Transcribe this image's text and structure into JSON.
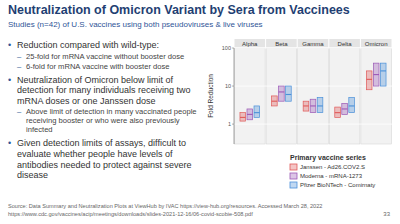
{
  "slide": {
    "title": "Neutralization of Omicron Variant by Sera from Vaccinees",
    "subtitle": "Studies (n=42) of U.S. vaccines using both pseudoviruses & live viruses",
    "bullets": [
      {
        "text": "Reduction compared with wild-type:",
        "sub": [
          "25-fold for mRNA vaccine without booster dose",
          "6-fold for mRNA vaccine with booster dose"
        ]
      },
      {
        "text": "Neutralization of Omicron below limit of detection for many individuals receiving two mRNA doses or one Janssen dose",
        "sub": [
          "Above limit of detection in many vaccinated people receiving booster or who were also previously infected"
        ]
      },
      {
        "text": "Given detection limits of assays, difficult to evaluate whether people have levels of antibodies needed to protect against severe disease",
        "sub": []
      }
    ],
    "source": [
      "Source: Data Summary and Neutralization Plots at ViewHub by IVAC https://view-hub.org/resources. Accessed March 28, 2022",
      "https://www.cdc.gov/vaccines/acip/meetings/downloads/slides-2021-12-16/06-covid-scobie-508.pdf"
    ],
    "page": 33
  },
  "chart_data": {
    "type": "box",
    "ylabel": "Fold Reduction",
    "categories": [
      "Alpha",
      "Beta",
      "Gamma",
      "Delta",
      "Omicron"
    ],
    "log": "y",
    "ylim": [
      0.3,
      100
    ],
    "yticks": [
      1,
      10,
      100
    ],
    "grid": true,
    "legend": "bottom right",
    "legend_title": "Primary vaccine series",
    "series": [
      {
        "name": "Janssen - Ad26.COV2.S",
        "color": "#e05a5a",
        "values": [
          1.5,
          4,
          3,
          2,
          15
        ],
        "q1": [
          1.2,
          3,
          2.2,
          1.5,
          8
        ],
        "q3": [
          2,
          5.5,
          4,
          2.8,
          25
        ]
      },
      {
        "name": "Moderna - mRNA-1273",
        "color": "#9b59b6",
        "values": [
          1.8,
          7,
          3,
          2.5,
          20
        ],
        "q1": [
          1.3,
          4,
          2,
          1.8,
          10
        ],
        "q3": [
          2.5,
          10,
          4.5,
          3.5,
          40
        ]
      },
      {
        "name": "Pfizer BioNTech - Comirnaty",
        "color": "#4a90d9",
        "values": [
          2,
          6,
          3,
          3,
          25
        ],
        "q1": [
          1.5,
          4,
          2,
          2,
          10
        ],
        "q3": [
          3,
          10,
          5,
          5,
          40
        ]
      }
    ]
  }
}
